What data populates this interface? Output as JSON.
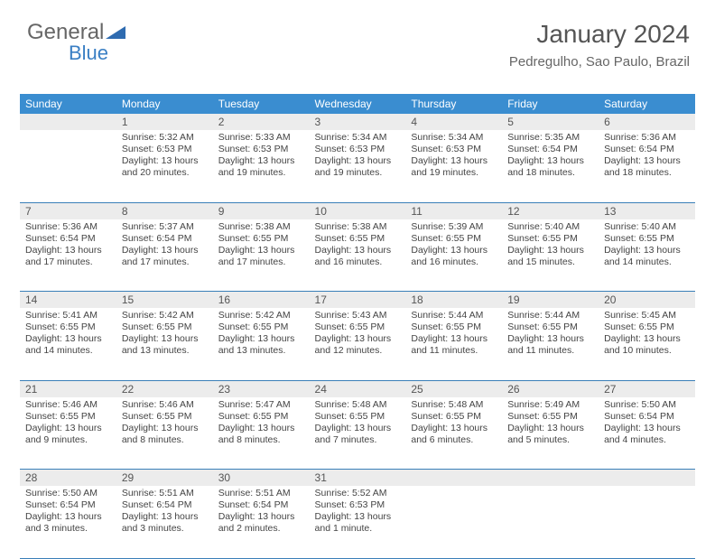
{
  "logo": {
    "text1": "General",
    "text2": "Blue",
    "color1": "#666666",
    "color2": "#3a7fc4",
    "triangle_color": "#2e6bb0"
  },
  "header": {
    "title": "January 2024",
    "location": "Pedregulho, Sao Paulo, Brazil"
  },
  "colors": {
    "dow_bg": "#3a8dd0",
    "dow_text": "#ffffff",
    "daynum_bg": "#ececec",
    "week_border": "#3a7fb8"
  },
  "days_of_week": [
    "Sunday",
    "Monday",
    "Tuesday",
    "Wednesday",
    "Thursday",
    "Friday",
    "Saturday"
  ],
  "start_offset": 1,
  "cells": [
    {
      "n": 1,
      "sr": "5:32 AM",
      "ss": "6:53 PM",
      "dl": "13 hours and 20 minutes."
    },
    {
      "n": 2,
      "sr": "5:33 AM",
      "ss": "6:53 PM",
      "dl": "13 hours and 19 minutes."
    },
    {
      "n": 3,
      "sr": "5:34 AM",
      "ss": "6:53 PM",
      "dl": "13 hours and 19 minutes."
    },
    {
      "n": 4,
      "sr": "5:34 AM",
      "ss": "6:53 PM",
      "dl": "13 hours and 19 minutes."
    },
    {
      "n": 5,
      "sr": "5:35 AM",
      "ss": "6:54 PM",
      "dl": "13 hours and 18 minutes."
    },
    {
      "n": 6,
      "sr": "5:36 AM",
      "ss": "6:54 PM",
      "dl": "13 hours and 18 minutes."
    },
    {
      "n": 7,
      "sr": "5:36 AM",
      "ss": "6:54 PM",
      "dl": "13 hours and 17 minutes."
    },
    {
      "n": 8,
      "sr": "5:37 AM",
      "ss": "6:54 PM",
      "dl": "13 hours and 17 minutes."
    },
    {
      "n": 9,
      "sr": "5:38 AM",
      "ss": "6:55 PM",
      "dl": "13 hours and 17 minutes."
    },
    {
      "n": 10,
      "sr": "5:38 AM",
      "ss": "6:55 PM",
      "dl": "13 hours and 16 minutes."
    },
    {
      "n": 11,
      "sr": "5:39 AM",
      "ss": "6:55 PM",
      "dl": "13 hours and 16 minutes."
    },
    {
      "n": 12,
      "sr": "5:40 AM",
      "ss": "6:55 PM",
      "dl": "13 hours and 15 minutes."
    },
    {
      "n": 13,
      "sr": "5:40 AM",
      "ss": "6:55 PM",
      "dl": "13 hours and 14 minutes."
    },
    {
      "n": 14,
      "sr": "5:41 AM",
      "ss": "6:55 PM",
      "dl": "13 hours and 14 minutes."
    },
    {
      "n": 15,
      "sr": "5:42 AM",
      "ss": "6:55 PM",
      "dl": "13 hours and 13 minutes."
    },
    {
      "n": 16,
      "sr": "5:42 AM",
      "ss": "6:55 PM",
      "dl": "13 hours and 13 minutes."
    },
    {
      "n": 17,
      "sr": "5:43 AM",
      "ss": "6:55 PM",
      "dl": "13 hours and 12 minutes."
    },
    {
      "n": 18,
      "sr": "5:44 AM",
      "ss": "6:55 PM",
      "dl": "13 hours and 11 minutes."
    },
    {
      "n": 19,
      "sr": "5:44 AM",
      "ss": "6:55 PM",
      "dl": "13 hours and 11 minutes."
    },
    {
      "n": 20,
      "sr": "5:45 AM",
      "ss": "6:55 PM",
      "dl": "13 hours and 10 minutes."
    },
    {
      "n": 21,
      "sr": "5:46 AM",
      "ss": "6:55 PM",
      "dl": "13 hours and 9 minutes."
    },
    {
      "n": 22,
      "sr": "5:46 AM",
      "ss": "6:55 PM",
      "dl": "13 hours and 8 minutes."
    },
    {
      "n": 23,
      "sr": "5:47 AM",
      "ss": "6:55 PM",
      "dl": "13 hours and 8 minutes."
    },
    {
      "n": 24,
      "sr": "5:48 AM",
      "ss": "6:55 PM",
      "dl": "13 hours and 7 minutes."
    },
    {
      "n": 25,
      "sr": "5:48 AM",
      "ss": "6:55 PM",
      "dl": "13 hours and 6 minutes."
    },
    {
      "n": 26,
      "sr": "5:49 AM",
      "ss": "6:55 PM",
      "dl": "13 hours and 5 minutes."
    },
    {
      "n": 27,
      "sr": "5:50 AM",
      "ss": "6:54 PM",
      "dl": "13 hours and 4 minutes."
    },
    {
      "n": 28,
      "sr": "5:50 AM",
      "ss": "6:54 PM",
      "dl": "13 hours and 3 minutes."
    },
    {
      "n": 29,
      "sr": "5:51 AM",
      "ss": "6:54 PM",
      "dl": "13 hours and 3 minutes."
    },
    {
      "n": 30,
      "sr": "5:51 AM",
      "ss": "6:54 PM",
      "dl": "13 hours and 2 minutes."
    },
    {
      "n": 31,
      "sr": "5:52 AM",
      "ss": "6:53 PM",
      "dl": "13 hours and 1 minute."
    }
  ],
  "labels": {
    "sunrise": "Sunrise:",
    "sunset": "Sunset:",
    "daylight": "Daylight:"
  }
}
